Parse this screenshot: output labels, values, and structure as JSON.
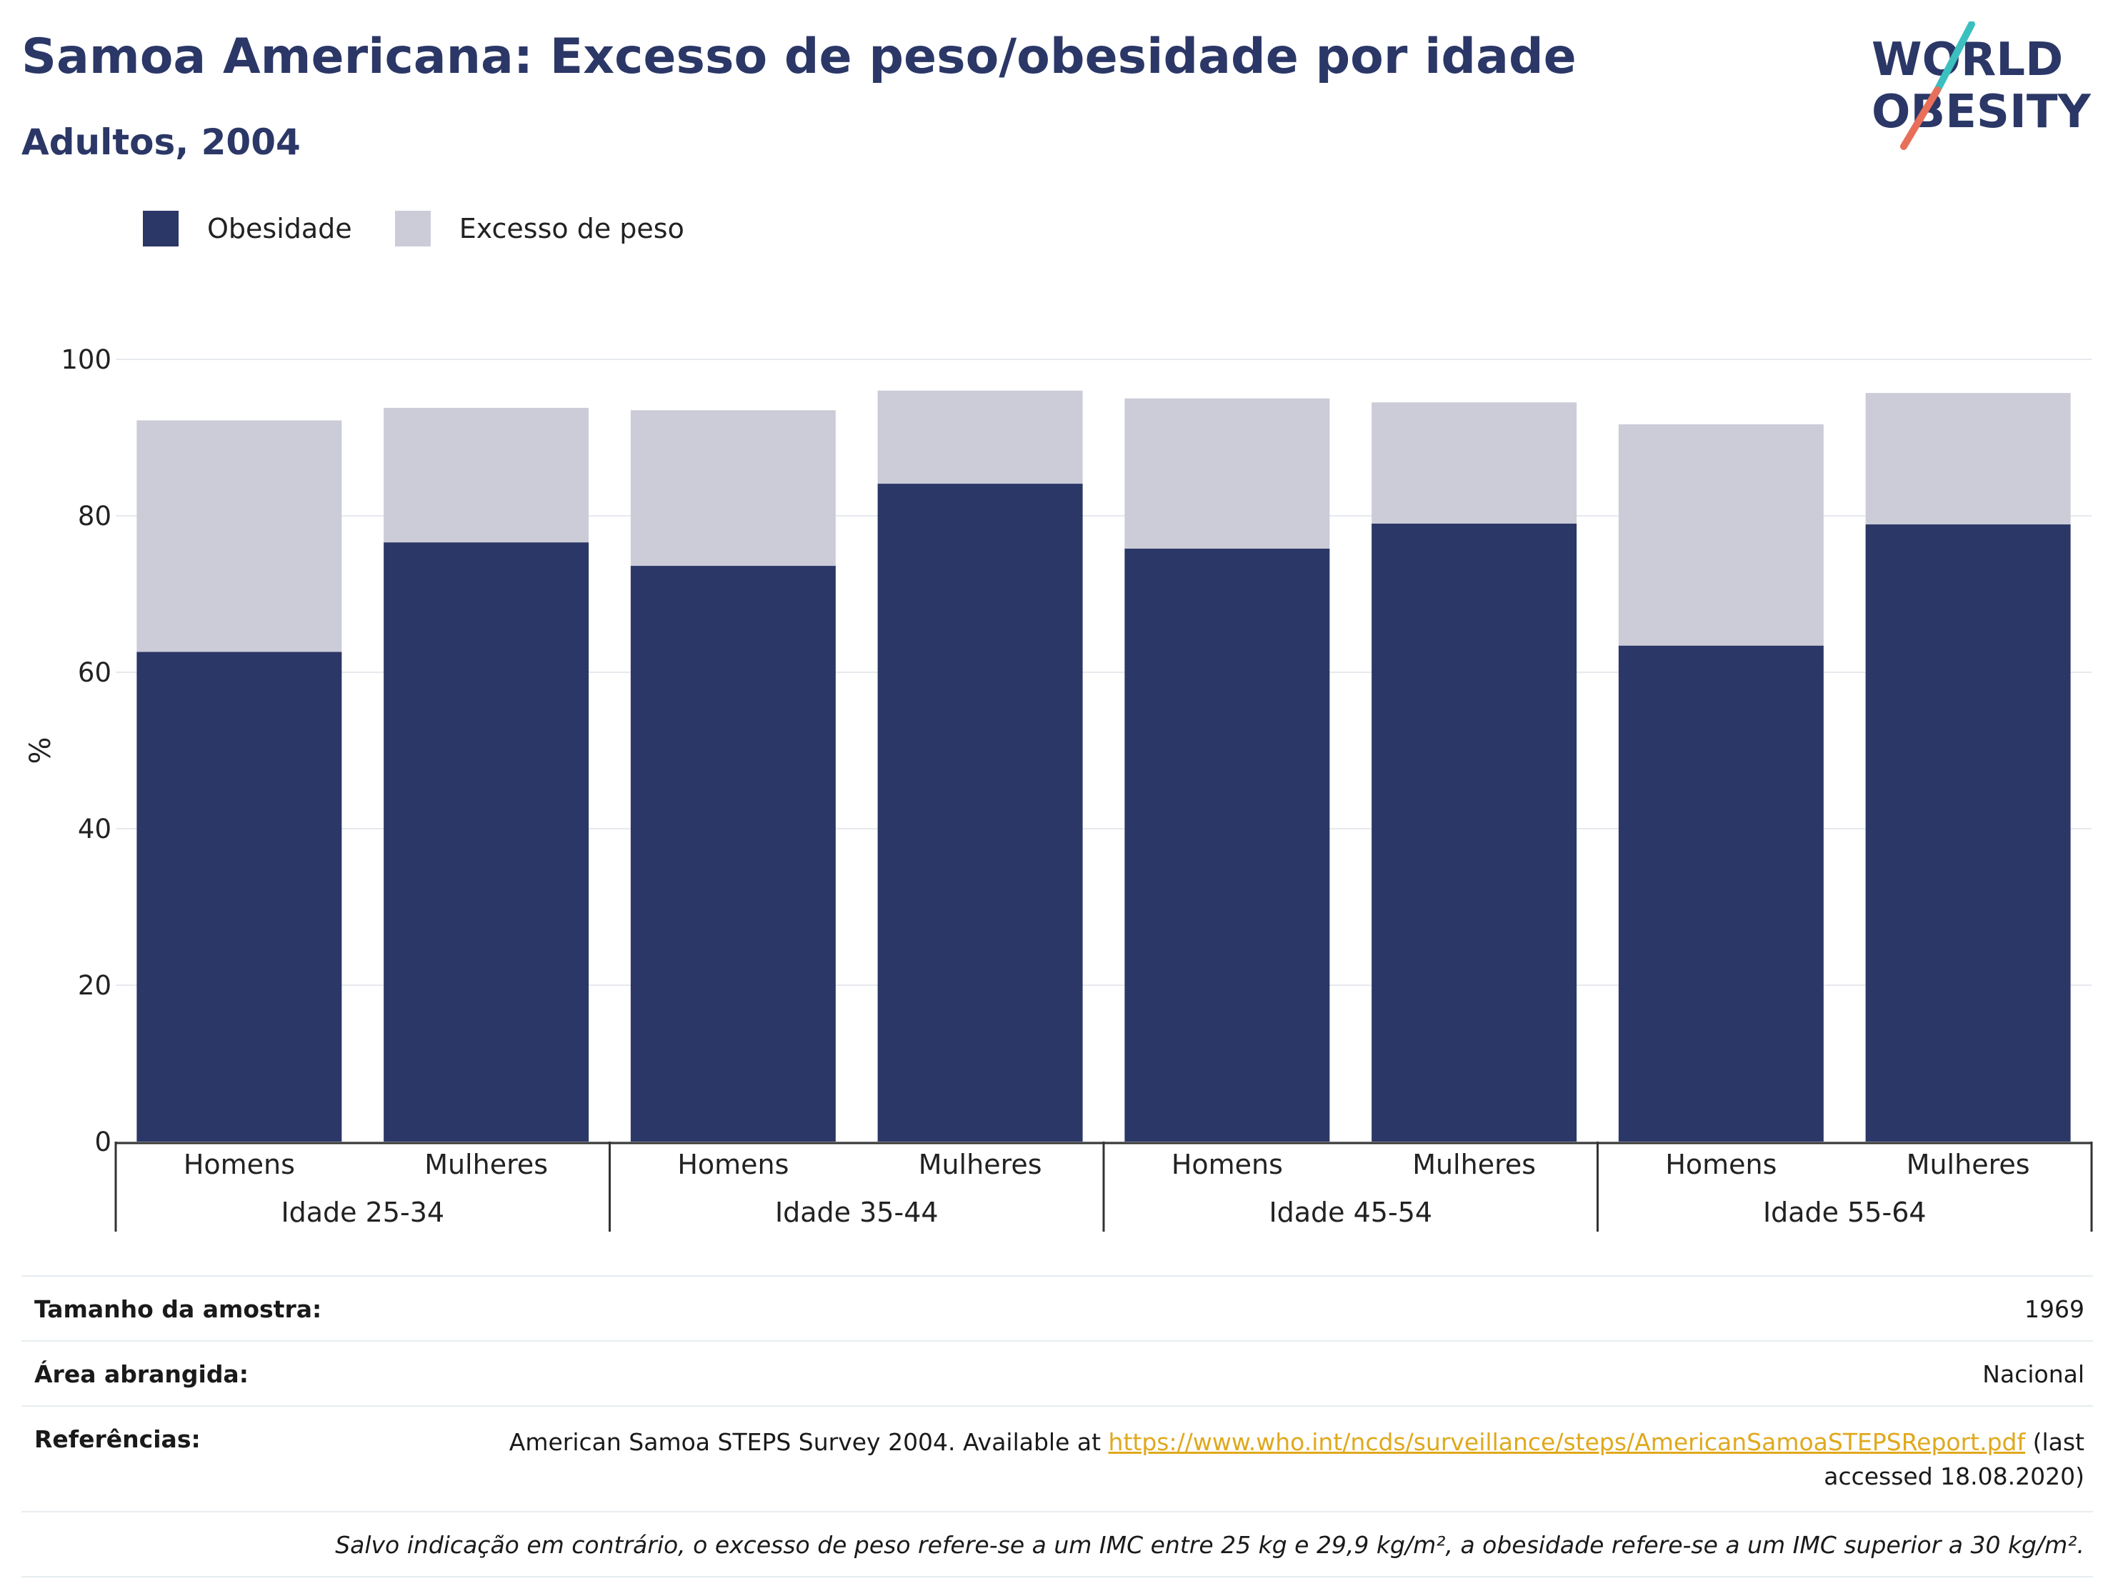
{
  "title": "Samoa Americana: Excesso de peso/obesidade por idade",
  "subtitle": "Adultos, 2004",
  "logo": {
    "line1": "WORLD",
    "line2": "OBESITY",
    "accent_colors": [
      "#3bbfbf",
      "#e8705a"
    ]
  },
  "legend": [
    {
      "label": "Obesidade",
      "color": "#2b3766"
    },
    {
      "label": "Excesso de peso",
      "color": "#cbccd8"
    }
  ],
  "chart_data": {
    "type": "bar",
    "stacked": true,
    "ylabel": "%",
    "ylim": [
      0,
      100
    ],
    "yticks": [
      0,
      20,
      40,
      60,
      80,
      100
    ],
    "grid": true,
    "legend_position": "top-left",
    "categories": [
      "Homens",
      "Mulheres",
      "Homens",
      "Mulheres",
      "Homens",
      "Mulheres",
      "Homens",
      "Mulheres"
    ],
    "groups": [
      "Idade 25-34",
      "Idade 35-44",
      "Idade 45-54",
      "Idade 55-64"
    ],
    "series": [
      {
        "name": "Obesidade",
        "color": "#2b3766",
        "values": [
          62.6,
          76.6,
          73.6,
          84.1,
          75.8,
          79.0,
          63.4,
          78.9
        ]
      },
      {
        "name": "Excesso de peso",
        "color": "#cbccd8",
        "values": [
          29.6,
          17.2,
          19.9,
          11.9,
          19.2,
          15.5,
          28.3,
          16.8
        ]
      }
    ]
  },
  "meta": {
    "sample_label": "Tamanho da amostra:",
    "sample_value": "1969",
    "area_label": "Área abrangida:",
    "area_value": "Nacional",
    "ref_label": "Referências:",
    "ref_text_before": "American Samoa STEPS Survey 2004. Available at ",
    "ref_link": "https://www.who.int/ncds/surveillance/steps/AmericanSamoaSTEPSReport.pdf",
    "ref_text_after": " (last accessed 18.08.2020)",
    "note": "Salvo indicação em contrário, o excesso de peso refere-se a um IMC entre 25 kg e 29,9 kg/m², a obesidade refere-se a um IMC superior a 30 kg/m²."
  }
}
